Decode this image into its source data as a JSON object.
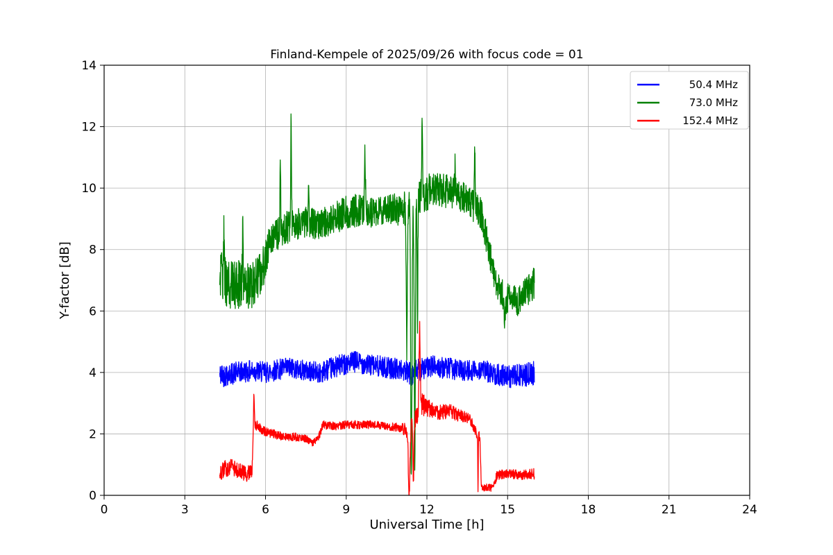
{
  "chart_data": {
    "type": "line",
    "title": "Finland-Kempele of 2025/09/26 with focus code = 01",
    "xlabel": "Universal Time [h]",
    "ylabel": "Y-factor [dB]",
    "xlim": [
      0,
      24
    ],
    "ylim": [
      0,
      14
    ],
    "xticks": [
      0,
      3,
      6,
      9,
      12,
      15,
      18,
      21,
      24
    ],
    "yticks": [
      0,
      2,
      4,
      6,
      8,
      10,
      12,
      14
    ],
    "grid": true,
    "grid_color": "#b0b0b0",
    "legend_position": "upper right",
    "data_x_range": [
      4.3,
      16.0
    ],
    "series": [
      {
        "name": "50.4 MHz",
        "color": "#0000ff",
        "anchors": [
          [
            4.3,
            3.9,
            0.4
          ],
          [
            5.0,
            4.0,
            0.35
          ],
          [
            5.5,
            4.05,
            0.35
          ],
          [
            6.0,
            4.0,
            0.35
          ],
          [
            6.5,
            4.1,
            0.35
          ],
          [
            7.0,
            4.15,
            0.35
          ],
          [
            7.5,
            4.05,
            0.33
          ],
          [
            8.0,
            4.0,
            0.35
          ],
          [
            8.5,
            4.15,
            0.35
          ],
          [
            9.0,
            4.3,
            0.35
          ],
          [
            9.4,
            4.35,
            0.35
          ],
          [
            9.8,
            4.25,
            0.35
          ],
          [
            10.2,
            4.2,
            0.35
          ],
          [
            10.6,
            4.15,
            0.35
          ],
          [
            11.0,
            4.1,
            0.35
          ],
          [
            11.4,
            3.95,
            0.4
          ],
          [
            11.8,
            4.1,
            0.38
          ],
          [
            12.2,
            4.2,
            0.35
          ],
          [
            12.6,
            4.15,
            0.35
          ],
          [
            13.0,
            4.1,
            0.35
          ],
          [
            13.5,
            4.05,
            0.35
          ],
          [
            14.0,
            4.1,
            0.35
          ],
          [
            14.5,
            3.95,
            0.35
          ],
          [
            15.0,
            3.85,
            0.38
          ],
          [
            15.5,
            3.9,
            0.38
          ],
          [
            16.0,
            3.95,
            0.42
          ]
        ],
        "spikes": []
      },
      {
        "name": "73.0 MHz",
        "color": "#008000",
        "anchors": [
          [
            4.3,
            7.2,
            0.85
          ],
          [
            4.7,
            6.8,
            0.8
          ],
          [
            5.1,
            6.9,
            0.8
          ],
          [
            5.5,
            6.8,
            0.75
          ],
          [
            5.9,
            7.4,
            0.7
          ],
          [
            6.2,
            8.4,
            0.5
          ],
          [
            6.6,
            8.6,
            0.55
          ],
          [
            7.0,
            8.8,
            0.55
          ],
          [
            7.5,
            8.9,
            0.5
          ],
          [
            8.0,
            8.8,
            0.5
          ],
          [
            8.5,
            9.0,
            0.5
          ],
          [
            9.0,
            9.2,
            0.55
          ],
          [
            9.5,
            9.3,
            0.55
          ],
          [
            10.0,
            9.2,
            0.5
          ],
          [
            10.5,
            9.3,
            0.5
          ],
          [
            11.0,
            9.3,
            0.55
          ],
          [
            11.5,
            9.5,
            0.6
          ],
          [
            11.9,
            9.8,
            0.6
          ],
          [
            12.3,
            10.0,
            0.55
          ],
          [
            12.7,
            9.9,
            0.55
          ],
          [
            13.1,
            9.8,
            0.55
          ],
          [
            13.5,
            9.6,
            0.5
          ],
          [
            14.0,
            9.2,
            0.55
          ],
          [
            14.3,
            8.0,
            0.5
          ],
          [
            14.6,
            6.8,
            0.45
          ],
          [
            15.0,
            6.4,
            0.5
          ],
          [
            15.4,
            6.3,
            0.5
          ],
          [
            15.7,
            6.7,
            0.55
          ],
          [
            16.0,
            6.9,
            0.6
          ]
        ],
        "spikes": [
          [
            4.45,
            1.5,
            0.02
          ],
          [
            5.15,
            1.6,
            0.02
          ],
          [
            6.55,
            2.1,
            0.02
          ],
          [
            6.95,
            3.5,
            0.02
          ],
          [
            7.6,
            1.3,
            0.02
          ],
          [
            9.7,
            1.8,
            0.025
          ],
          [
            11.25,
            -4.5,
            0.03
          ],
          [
            11.42,
            -8.6,
            0.035
          ],
          [
            11.55,
            -8.2,
            0.03
          ],
          [
            11.65,
            -4.0,
            0.02
          ],
          [
            11.82,
            2.6,
            0.02
          ],
          [
            13.05,
            0.9,
            0.02
          ],
          [
            13.78,
            1.8,
            0.02
          ],
          [
            14.9,
            -0.8,
            0.04
          ]
        ]
      },
      {
        "name": "152.4 MHz",
        "color": "#ff0000",
        "anchors": [
          [
            4.3,
            0.75,
            0.3
          ],
          [
            4.7,
            0.95,
            0.28
          ],
          [
            5.0,
            0.8,
            0.25
          ],
          [
            5.3,
            0.7,
            0.25
          ],
          [
            5.5,
            0.8,
            0.22
          ],
          [
            5.56,
            2.35,
            0.18
          ],
          [
            5.9,
            2.1,
            0.15
          ],
          [
            6.3,
            2.0,
            0.15
          ],
          [
            6.7,
            1.9,
            0.13
          ],
          [
            7.1,
            1.9,
            0.13
          ],
          [
            7.5,
            1.85,
            0.12
          ],
          [
            7.75,
            1.7,
            0.1
          ],
          [
            7.95,
            1.85,
            0.12
          ],
          [
            8.15,
            2.3,
            0.15
          ],
          [
            8.6,
            2.25,
            0.13
          ],
          [
            9.0,
            2.3,
            0.13
          ],
          [
            9.5,
            2.3,
            0.15
          ],
          [
            10.0,
            2.3,
            0.13
          ],
          [
            10.5,
            2.25,
            0.13
          ],
          [
            11.0,
            2.2,
            0.15
          ],
          [
            11.3,
            2.1,
            0.25
          ],
          [
            11.6,
            2.6,
            0.35
          ],
          [
            11.78,
            3.0,
            0.4
          ],
          [
            12.0,
            2.85,
            0.3
          ],
          [
            12.4,
            2.7,
            0.25
          ],
          [
            12.8,
            2.75,
            0.25
          ],
          [
            13.2,
            2.6,
            0.2
          ],
          [
            13.6,
            2.5,
            0.18
          ],
          [
            13.85,
            2.0,
            0.15
          ],
          [
            13.97,
            1.9,
            0.15
          ],
          [
            14.02,
            0.25,
            0.12
          ],
          [
            14.45,
            0.25,
            0.12
          ],
          [
            14.6,
            0.65,
            0.15
          ],
          [
            15.0,
            0.72,
            0.15
          ],
          [
            15.5,
            0.65,
            0.15
          ],
          [
            16.0,
            0.7,
            0.18
          ]
        ],
        "spikes": [
          [
            5.57,
            0.85,
            0.025
          ],
          [
            11.34,
            -2.2,
            0.04
          ],
          [
            11.5,
            -1.9,
            0.025
          ],
          [
            11.73,
            2.5,
            0.03
          ],
          [
            13.9,
            -1.9,
            0.012
          ]
        ]
      }
    ]
  }
}
